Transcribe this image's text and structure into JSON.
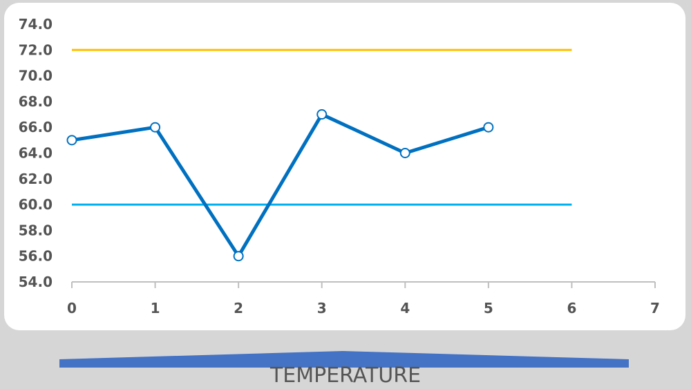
{
  "chart_data": {
    "type": "line",
    "title": "TEMPERATURE",
    "xlabel": "",
    "ylabel": "",
    "xlim": [
      0,
      7
    ],
    "ylim": [
      54,
      74
    ],
    "x_ticks": [
      0,
      1,
      2,
      3,
      4,
      5,
      6,
      7
    ],
    "y_ticks": [
      "54.0",
      "56.0",
      "58.0",
      "60.0",
      "62.0",
      "64.0",
      "66.0",
      "68.0",
      "70.0",
      "72.0",
      "74.0"
    ],
    "grid": false,
    "legend": "none",
    "series": [
      {
        "color": "#0070c0",
        "markers": true,
        "points": [
          {
            "x": 0,
            "y": 65
          },
          {
            "x": 1,
            "y": 66
          },
          {
            "x": 2,
            "y": 56
          },
          {
            "x": 3,
            "y": 67
          },
          {
            "x": 4,
            "y": 64
          },
          {
            "x": 5,
            "y": 66
          }
        ]
      },
      {
        "color": "#ffc000",
        "markers": false,
        "points": [
          {
            "x": 0,
            "y": 72
          },
          {
            "x": 6,
            "y": 72
          }
        ]
      },
      {
        "color": "#00b0f0",
        "markers": false,
        "points": [
          {
            "x": 0,
            "y": 60
          },
          {
            "x": 6,
            "y": 60
          }
        ]
      }
    ]
  },
  "colors": {
    "background": "#d6d6d6",
    "card": "#ffffff",
    "axis": "#bfbfbf",
    "tick_text": "#545454",
    "band": "#4472c4"
  }
}
